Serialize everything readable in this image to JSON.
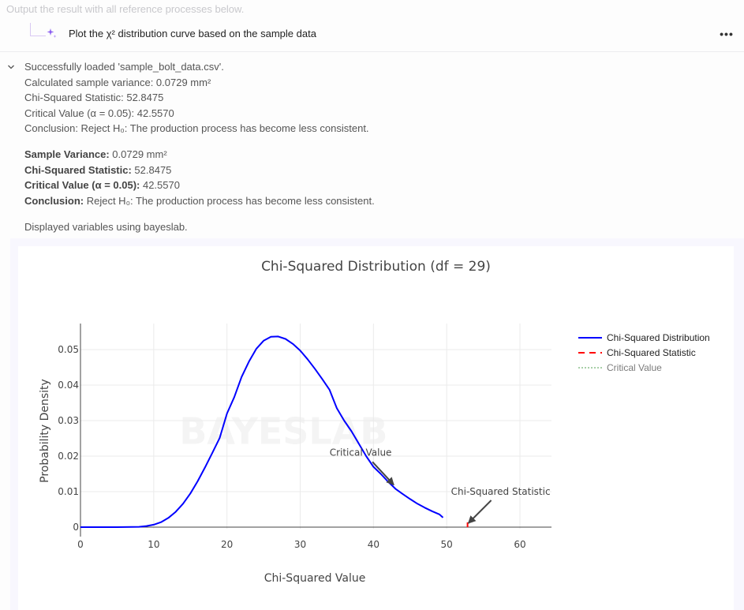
{
  "header": {
    "hint": "Output the result with all reference processes below.",
    "query": "Plot the χ² distribution curve based on the sample data",
    "more_label": "•••"
  },
  "log": {
    "lines": [
      "Successfully loaded 'sample_bolt_data.csv'.",
      "Calculated sample variance: 0.0729 mm²",
      "Chi-Squared Statistic: 52.8475",
      "Critical Value (α = 0.05): 42.5570",
      "Conclusion: Reject H₀: The production process has become less consistent."
    ]
  },
  "summary": [
    {
      "label": "Sample Variance:",
      "value": " 0.0729 mm²"
    },
    {
      "label": "Chi-Squared Statistic:",
      "value": " 52.8475"
    },
    {
      "label": "Critical Value (α = 0.05):",
      "value": " 42.5570"
    },
    {
      "label": "Conclusion:",
      "value": " Reject H₀: The production process has become less consistent."
    }
  ],
  "footer_note": "Displayed variables using bayeslab.",
  "watermark": "BAYESLAB",
  "colors": {
    "curve": "#0000ff",
    "statistic": "#ff0000",
    "critical": "#90c890",
    "arrow": "#444444"
  },
  "chart_data": {
    "type": "line",
    "title": "Chi-Squared Distribution (df = 29)",
    "xlabel": "Chi-Squared Value",
    "ylabel": "Probability Density",
    "xlim": [
      0,
      64
    ],
    "ylim": [
      -0.002,
      0.057
    ],
    "x_ticks": [
      0,
      10,
      20,
      30,
      40,
      50,
      60
    ],
    "y_ticks": [
      0,
      0.01,
      0.02,
      0.03,
      0.04,
      0.05
    ],
    "y_tick_labels": [
      "0",
      "0.01",
      "0.02",
      "0.03",
      "0.04",
      "0.05"
    ],
    "grid": true,
    "legend_position": "right",
    "series": [
      {
        "name": "Chi-Squared Distribution",
        "style": "solid",
        "color": "#0000ff",
        "x": [
          0,
          5,
          8,
          9,
          10,
          11,
          12,
          13,
          14,
          15,
          16,
          17,
          18,
          19,
          20,
          21,
          22,
          23,
          24,
          25,
          26,
          27,
          28,
          29,
          30,
          31,
          32,
          33,
          34,
          35,
          36,
          37,
          38,
          39,
          40,
          41,
          42,
          42.56,
          43,
          44,
          45,
          46,
          47,
          48,
          49,
          49.5
        ],
        "y": [
          0,
          0,
          0.0001,
          0.0003,
          0.0007,
          0.0014,
          0.0026,
          0.0043,
          0.0066,
          0.0095,
          0.0129,
          0.0168,
          0.0209,
          0.0251,
          0.032,
          0.0366,
          0.0423,
          0.0466,
          0.0502,
          0.0525,
          0.0536,
          0.0537,
          0.053,
          0.0516,
          0.0497,
          0.0473,
          0.0446,
          0.0417,
          0.0387,
          0.0335,
          0.03,
          0.027,
          0.0235,
          0.02,
          0.017,
          0.015,
          0.0128,
          0.0117,
          0.0108,
          0.0093,
          0.0079,
          0.0066,
          0.0055,
          0.0045,
          0.0036,
          0.0027
        ]
      },
      {
        "name": "Chi-Squared Statistic",
        "style": "dash",
        "color": "#ff0000",
        "x": [
          52.8475,
          52.8475
        ],
        "y": [
          0,
          0.0012
        ]
      },
      {
        "name": "Critical Value",
        "style": "dot",
        "color": "#90c890",
        "x": [
          42.557,
          42.557
        ],
        "y": [
          0,
          0.0117
        ]
      }
    ],
    "annotations": [
      {
        "text": "Critical Value",
        "x": 42.557,
        "y": 0.0117
      },
      {
        "text": "Chi-Squared Statistic",
        "x": 52.8475,
        "y": 0.0
      }
    ]
  }
}
